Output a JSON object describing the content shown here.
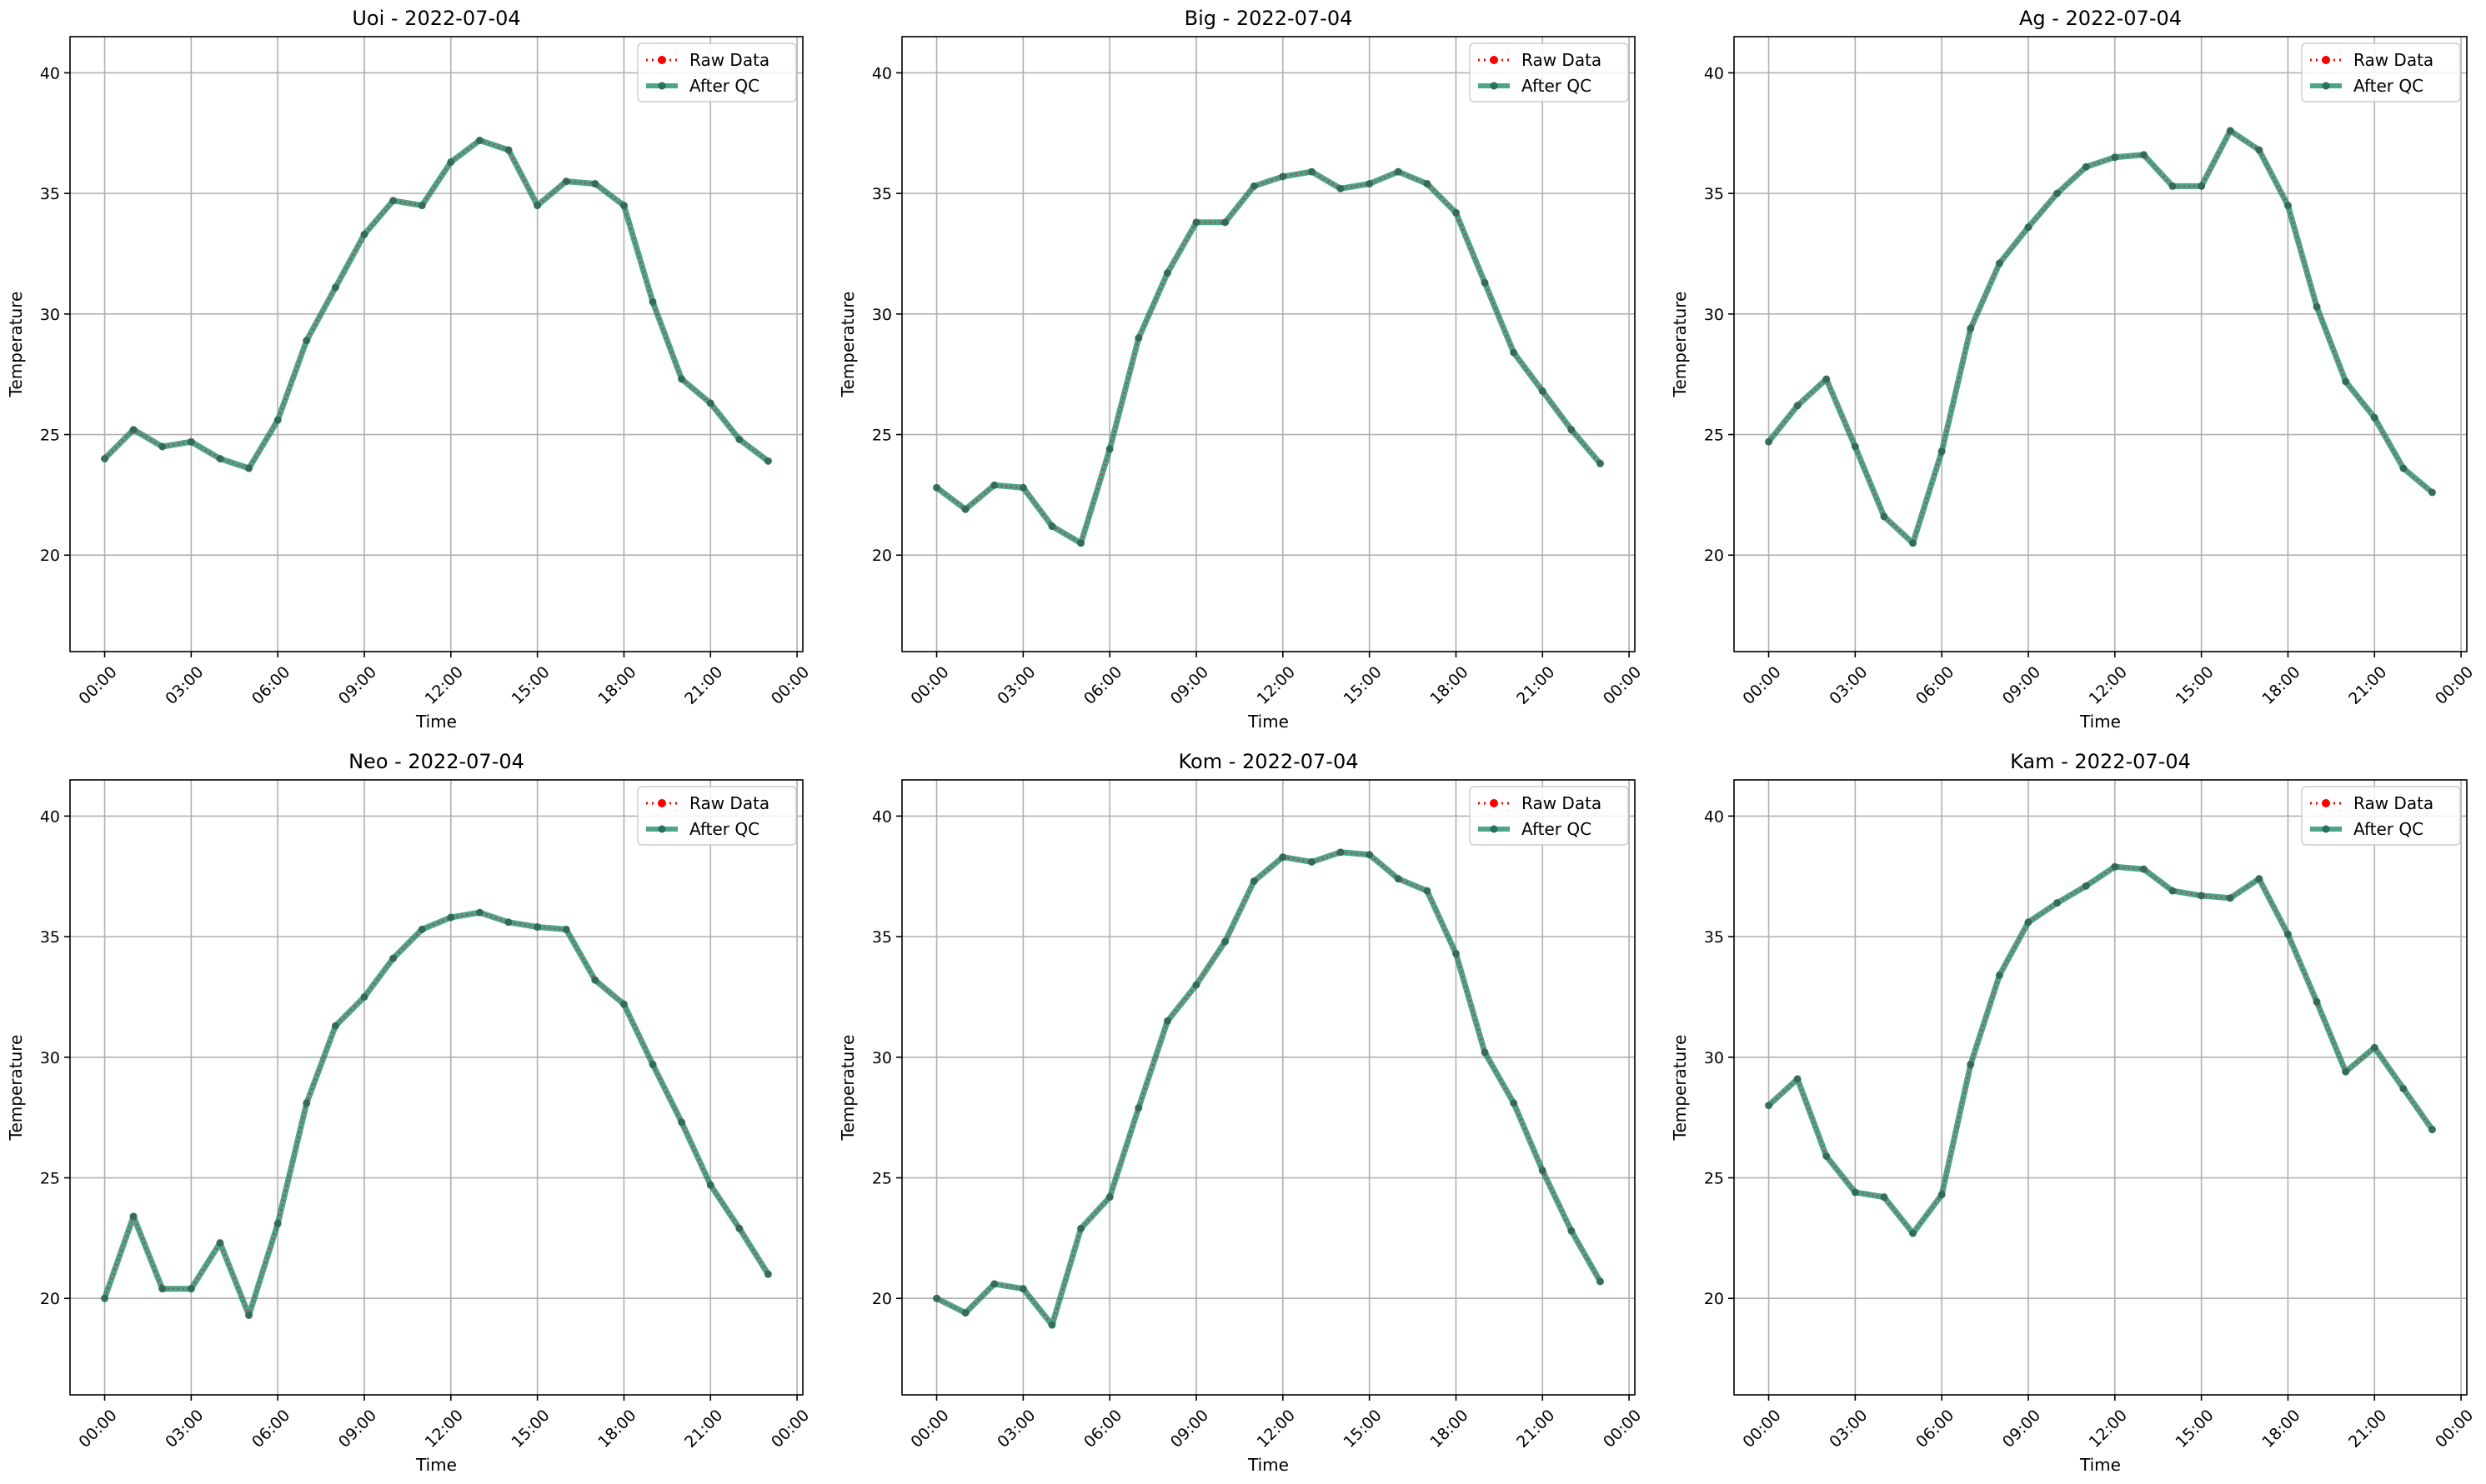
{
  "chart_data": [
    {
      "type": "line",
      "title": "Uoi - 2022-07-04",
      "xlabel": "Time",
      "ylabel": "Temperature",
      "ylim": [
        16,
        41.5
      ],
      "yticks": [
        20,
        25,
        30,
        35,
        40
      ],
      "xticks": [
        "00:00",
        "03:00",
        "06:00",
        "09:00",
        "12:00",
        "15:00",
        "18:00",
        "21:00",
        "00:00"
      ],
      "xlim_hours": [
        -1.2,
        24.2
      ],
      "grid": true,
      "legend_position": "top-right",
      "hours": [
        0,
        1,
        2,
        3,
        4,
        5,
        6,
        7,
        8,
        9,
        10,
        11,
        12,
        13,
        14,
        15,
        16,
        17,
        18,
        19,
        20,
        21,
        22,
        23
      ],
      "series": [
        {
          "name": "Raw Data",
          "color": "#ff0000",
          "values": [
            24.0,
            25.2,
            24.5,
            24.7,
            24.0,
            23.6,
            25.6,
            28.9,
            31.1,
            33.3,
            34.7,
            34.5,
            36.3,
            37.2,
            36.8,
            34.5,
            35.5,
            35.4,
            34.5,
            30.5,
            27.3,
            26.3,
            24.8,
            23.9
          ]
        },
        {
          "name": "After QC",
          "color": "#1a8a6a",
          "values": [
            24.0,
            25.2,
            24.5,
            24.7,
            24.0,
            23.6,
            25.6,
            28.9,
            31.1,
            33.3,
            34.7,
            34.5,
            36.3,
            37.2,
            36.8,
            34.5,
            35.5,
            35.4,
            34.5,
            30.5,
            27.3,
            26.3,
            24.8,
            23.9
          ]
        }
      ]
    },
    {
      "type": "line",
      "title": "Big - 2022-07-04",
      "xlabel": "Time",
      "ylabel": "Temperature",
      "ylim": [
        16,
        41.5
      ],
      "yticks": [
        20,
        25,
        30,
        35,
        40
      ],
      "xticks": [
        "00:00",
        "03:00",
        "06:00",
        "09:00",
        "12:00",
        "15:00",
        "18:00",
        "21:00",
        "00:00"
      ],
      "xlim_hours": [
        -1.2,
        24.2
      ],
      "grid": true,
      "legend_position": "top-right",
      "hours": [
        0,
        1,
        2,
        3,
        4,
        5,
        6,
        7,
        8,
        9,
        10,
        11,
        12,
        13,
        14,
        15,
        16,
        17,
        18,
        19,
        20,
        21,
        22,
        23
      ],
      "series": [
        {
          "name": "Raw Data",
          "color": "#ff0000",
          "values": [
            22.8,
            21.9,
            22.9,
            22.8,
            21.2,
            20.5,
            24.4,
            29.0,
            31.7,
            33.8,
            33.8,
            35.3,
            35.7,
            35.9,
            35.2,
            35.4,
            35.9,
            35.4,
            34.2,
            31.3,
            28.4,
            26.8,
            25.2,
            23.8
          ]
        },
        {
          "name": "After QC",
          "color": "#1a8a6a",
          "values": [
            22.8,
            21.9,
            22.9,
            22.8,
            21.2,
            20.5,
            24.4,
            29.0,
            31.7,
            33.8,
            33.8,
            35.3,
            35.7,
            35.9,
            35.2,
            35.4,
            35.9,
            35.4,
            34.2,
            31.3,
            28.4,
            26.8,
            25.2,
            23.8
          ]
        }
      ]
    },
    {
      "type": "line",
      "title": "Ag - 2022-07-04",
      "xlabel": "Time",
      "ylabel": "Temperature",
      "ylim": [
        16,
        41.5
      ],
      "yticks": [
        20,
        25,
        30,
        35,
        40
      ],
      "xticks": [
        "00:00",
        "03:00",
        "06:00",
        "09:00",
        "12:00",
        "15:00",
        "18:00",
        "21:00",
        "00:00"
      ],
      "xlim_hours": [
        -1.2,
        24.2
      ],
      "grid": true,
      "legend_position": "top-right",
      "hours": [
        0,
        1,
        2,
        3,
        4,
        5,
        6,
        7,
        8,
        9,
        10,
        11,
        12,
        13,
        14,
        15,
        16,
        17,
        18,
        19,
        20,
        21,
        22,
        23
      ],
      "series": [
        {
          "name": "Raw Data",
          "color": "#ff0000",
          "values": [
            24.7,
            26.2,
            27.3,
            24.5,
            21.6,
            20.5,
            24.3,
            29.4,
            32.1,
            33.6,
            35.0,
            36.1,
            36.5,
            36.6,
            35.3,
            35.3,
            37.6,
            36.8,
            34.5,
            30.3,
            27.2,
            25.7,
            23.6,
            22.6
          ]
        },
        {
          "name": "After QC",
          "color": "#1a8a6a",
          "values": [
            24.7,
            26.2,
            27.3,
            24.5,
            21.6,
            20.5,
            24.3,
            29.4,
            32.1,
            33.6,
            35.0,
            36.1,
            36.5,
            36.6,
            35.3,
            35.3,
            37.6,
            36.8,
            34.5,
            30.3,
            27.2,
            25.7,
            23.6,
            22.6
          ]
        }
      ]
    },
    {
      "type": "line",
      "title": "Neo - 2022-07-04",
      "xlabel": "Time",
      "ylabel": "Temperature",
      "ylim": [
        16,
        41.5
      ],
      "yticks": [
        20,
        25,
        30,
        35,
        40
      ],
      "xticks": [
        "00:00",
        "03:00",
        "06:00",
        "09:00",
        "12:00",
        "15:00",
        "18:00",
        "21:00",
        "00:00"
      ],
      "xlim_hours": [
        -1.2,
        24.2
      ],
      "grid": true,
      "legend_position": "top-right",
      "hours": [
        0,
        1,
        2,
        3,
        4,
        5,
        6,
        7,
        8,
        9,
        10,
        11,
        12,
        13,
        14,
        15,
        16,
        17,
        18,
        19,
        20,
        21,
        22,
        23
      ],
      "series": [
        {
          "name": "Raw Data",
          "color": "#ff0000",
          "values": [
            20.0,
            23.4,
            20.4,
            20.4,
            22.3,
            19.3,
            23.1,
            28.1,
            31.3,
            32.5,
            34.1,
            35.3,
            35.8,
            36.0,
            35.6,
            35.4,
            35.3,
            33.2,
            32.2,
            29.7,
            27.3,
            24.7,
            22.9,
            21.0
          ]
        },
        {
          "name": "After QC",
          "color": "#1a8a6a",
          "values": [
            20.0,
            23.4,
            20.4,
            20.4,
            22.3,
            19.3,
            23.1,
            28.1,
            31.3,
            32.5,
            34.1,
            35.3,
            35.8,
            36.0,
            35.6,
            35.4,
            35.3,
            33.2,
            32.2,
            29.7,
            27.3,
            24.7,
            22.9,
            21.0
          ]
        }
      ]
    },
    {
      "type": "line",
      "title": "Kom - 2022-07-04",
      "xlabel": "Time",
      "ylabel": "Temperature",
      "ylim": [
        16,
        41.5
      ],
      "yticks": [
        20,
        25,
        30,
        35,
        40
      ],
      "xticks": [
        "00:00",
        "03:00",
        "06:00",
        "09:00",
        "12:00",
        "15:00",
        "18:00",
        "21:00",
        "00:00"
      ],
      "xlim_hours": [
        -1.2,
        24.2
      ],
      "grid": true,
      "legend_position": "top-right",
      "hours": [
        0,
        1,
        2,
        3,
        4,
        5,
        6,
        7,
        8,
        9,
        10,
        11,
        12,
        13,
        14,
        15,
        16,
        17,
        18,
        19,
        20,
        21,
        22,
        23
      ],
      "series": [
        {
          "name": "Raw Data",
          "color": "#ff0000",
          "values": [
            20.0,
            19.4,
            20.6,
            20.4,
            18.9,
            22.9,
            24.2,
            27.9,
            31.5,
            33.0,
            34.8,
            37.3,
            38.3,
            38.1,
            38.5,
            38.4,
            37.4,
            36.9,
            34.3,
            30.2,
            28.1,
            25.3,
            22.8,
            20.7
          ]
        },
        {
          "name": "After QC",
          "color": "#1a8a6a",
          "values": [
            20.0,
            19.4,
            20.6,
            20.4,
            18.9,
            22.9,
            24.2,
            27.9,
            31.5,
            33.0,
            34.8,
            37.3,
            38.3,
            38.1,
            38.5,
            38.4,
            37.4,
            36.9,
            34.3,
            30.2,
            28.1,
            25.3,
            22.8,
            20.7
          ]
        }
      ]
    },
    {
      "type": "line",
      "title": "Kam - 2022-07-04",
      "xlabel": "Time",
      "ylabel": "Temperature",
      "ylim": [
        16,
        41.5
      ],
      "yticks": [
        20,
        25,
        30,
        35,
        40
      ],
      "xticks": [
        "00:00",
        "03:00",
        "06:00",
        "09:00",
        "12:00",
        "15:00",
        "18:00",
        "21:00",
        "00:00"
      ],
      "xlim_hours": [
        -1.2,
        24.2
      ],
      "grid": true,
      "legend_position": "top-right",
      "hours": [
        0,
        1,
        2,
        3,
        4,
        5,
        6,
        7,
        8,
        9,
        10,
        11,
        12,
        13,
        14,
        15,
        16,
        17,
        18,
        19,
        20,
        21,
        22,
        23
      ],
      "series": [
        {
          "name": "Raw Data",
          "color": "#ff0000",
          "values": [
            28.0,
            29.1,
            25.9,
            24.4,
            24.2,
            22.7,
            24.3,
            29.7,
            33.4,
            35.6,
            36.4,
            37.1,
            37.9,
            37.8,
            36.9,
            36.7,
            36.6,
            37.4,
            35.1,
            32.3,
            29.4,
            30.4,
            28.7,
            27.0
          ]
        },
        {
          "name": "After QC",
          "color": "#1a8a6a",
          "values": [
            28.0,
            29.1,
            25.9,
            24.4,
            24.2,
            22.7,
            24.3,
            29.7,
            33.4,
            35.6,
            36.4,
            37.1,
            37.9,
            37.8,
            36.9,
            36.7,
            36.6,
            37.4,
            35.1,
            32.3,
            29.4,
            30.4,
            28.7,
            27.0
          ]
        }
      ]
    }
  ]
}
